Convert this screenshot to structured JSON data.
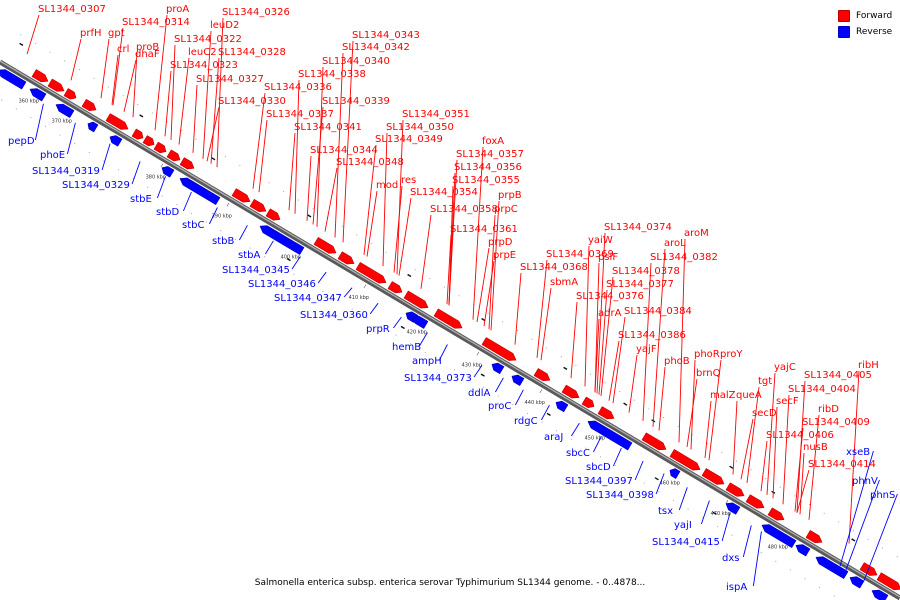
{
  "legend": {
    "forward_label": "Forward",
    "reverse_label": "Reverse",
    "forward_color": "#ff0000",
    "reverse_color": "#0000ff"
  },
  "caption": "Salmonella enterica subsp. enterica serovar Typhimurium SL1344 genome. - 0..4878...",
  "scale_ticks": [
    "360 kbp",
    "370 kbp",
    "380 kbp",
    "390 kbp",
    "400 kbp",
    "410 kbp",
    "420 kbp",
    "430 kbp",
    "440 kbp",
    "450 kbp",
    "460 kbp",
    "470 kbp",
    "480 kbp"
  ],
  "forward_genes": [
    "SL1344_0307",
    "prfH",
    "gpt",
    "crl",
    "proB",
    "proA",
    "SL1344_0314",
    "leuD2",
    "SL1344_0326",
    "SL1344_0322",
    "dhaF",
    "leuC2",
    "SL1344_0328",
    "SL1344_0323",
    "SL1344_0327",
    "SL1344_0330",
    "SL1344_0343",
    "SL1344_0342",
    "SL1344_0340",
    "SL1344_0338",
    "SL1344_0336",
    "SL1344_0339",
    "SL1344_0337",
    "SL1344_0341",
    "SL1344_0344",
    "SL1344_0348",
    "mod",
    "res",
    "SL1344_0351",
    "SL1344_0350",
    "SL1344_0349",
    "foxA",
    "SL1344_0357",
    "SL1344_0356",
    "SL1344_0355",
    "SL1344_0354",
    "SL1344_0358",
    "prpB",
    "prpC",
    "SL1344_0361",
    "prpD",
    "prpE",
    "SL1344_0374",
    "aroM",
    "yaiW",
    "aroL",
    "SL1344_0369",
    "SL1344_0382",
    "SL1344_0368",
    "psiF",
    "SL1344_0378",
    "sbmA",
    "SL1344_0377",
    "SL1344_0376",
    "adrA",
    "SL1344_0384",
    "SL1344_0386",
    "yajF",
    "phoB",
    "phoR",
    "proY",
    "brnQ",
    "yajC",
    "malZ",
    "queA",
    "tgt",
    "ribH",
    "SL1344_0405",
    "SL1344_0404",
    "secF",
    "secD",
    "ribD",
    "SL1344_0409",
    "SL1344_0406",
    "nusB",
    "SL1344_0414"
  ],
  "reverse_genes": [
    "pepD",
    "phoE",
    "SL1344_0319",
    "SL1344_0329",
    "stbE",
    "stbD",
    "stbC",
    "stbB",
    "stbA",
    "SL1344_0345",
    "SL1344_0346",
    "SL1344_0347",
    "SL1344_0360",
    "prpR",
    "hemB",
    "ampH",
    "SL1344_0373",
    "ddlA",
    "proC",
    "rdgC",
    "araJ",
    "sbcC",
    "sbcD",
    "SL1344_0397",
    "SL1344_0398",
    "tsx",
    "yajI",
    "SL1344_0415",
    "dxs",
    "ispA",
    "xseB",
    "phnV",
    "phnS"
  ]
}
